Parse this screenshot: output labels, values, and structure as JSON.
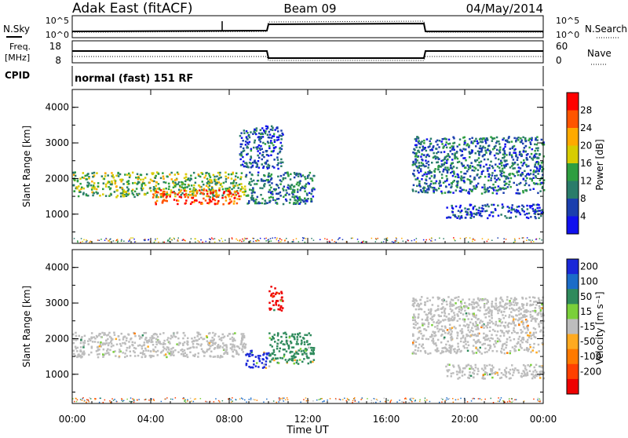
{
  "header": {
    "station": "Adak East (fitACF)",
    "beam": "Beam 09",
    "date": "04/May/2014"
  },
  "noise_panel": {
    "left_label": "N.Sky",
    "right_label": "N.Search",
    "left_ticks": [
      "10^5",
      "10^0"
    ],
    "right_ticks": [
      "10^5",
      "10^0"
    ]
  },
  "freq_panel": {
    "left_label_top": "Freq.",
    "left_label_unit": "[MHz]",
    "right_label": "Nave",
    "left_ticks": [
      "18",
      "8"
    ],
    "right_ticks": [
      "60",
      "0"
    ]
  },
  "cpid_panel": {
    "label": "CPID",
    "text": "normal (fast) 151 RF"
  },
  "power_colorbar": {
    "label": "Power [dB]",
    "ticks": [
      "28",
      "24",
      "20",
      "16",
      "12",
      "8",
      "4"
    ],
    "colors": [
      "#ff0000",
      "#ff5500",
      "#ffaa00",
      "#d8cc00",
      "#2e9e40",
      "#2a7c6a",
      "#1b3fae",
      "#1010ee"
    ]
  },
  "velocity_colorbar": {
    "label": "Velocity [m s⁻¹]",
    "ticks": [
      "200",
      "100",
      "50",
      "15",
      "-15",
      "-50",
      "-100",
      "-200"
    ],
    "colors": [
      "#1a28d8",
      "#1b6cc8",
      "#2f8a5c",
      "#7ad03a",
      "#bdbdbd",
      "#ffaa20",
      "#ff7a00",
      "#ff4000",
      "#ee0000"
    ]
  },
  "chart_data": [
    {
      "type": "heatmap",
      "title": "",
      "xlabel": "",
      "ylabel": "Slant Range [km]",
      "xlim_hours": [
        0,
        24
      ],
      "ylim_km": [
        180,
        4500
      ],
      "x_ticks": [
        "00:00",
        "04:00",
        "08:00",
        "12:00",
        "16:00",
        "20:00",
        "00:00"
      ],
      "y_ticks": [
        "4000",
        "3000",
        "2000",
        "1000"
      ],
      "variable": "Power [dB]",
      "clim": [
        0,
        30
      ],
      "echo_regions": [
        {
          "t_start": 0.0,
          "t_end": 8.8,
          "r_low": 1500,
          "r_high": 2200,
          "power": 14
        },
        {
          "t_start": 4.0,
          "t_end": 8.5,
          "r_low": 1300,
          "r_high": 1700,
          "power": 26
        },
        {
          "t_start": 8.8,
          "t_end": 12.3,
          "r_low": 1300,
          "r_high": 2200,
          "power": 9
        },
        {
          "t_start": 8.5,
          "t_end": 10.7,
          "r_low": 2300,
          "r_high": 3500,
          "power": 6
        },
        {
          "t_start": 17.3,
          "t_end": 24.0,
          "r_low": 1600,
          "r_high": 3200,
          "power": 8
        },
        {
          "t_start": 19.0,
          "t_end": 24.0,
          "r_low": 900,
          "r_high": 1300,
          "power": 5
        }
      ]
    },
    {
      "type": "heatmap",
      "title": "",
      "xlabel": "Time UT",
      "ylabel": "Slant Range [km]",
      "xlim_hours": [
        0,
        24
      ],
      "ylim_km": [
        180,
        4500
      ],
      "x_ticks": [
        "00:00",
        "04:00",
        "08:00",
        "12:00",
        "16:00",
        "20:00",
        "00:00"
      ],
      "y_ticks": [
        "4000",
        "3000",
        "2000",
        "1000"
      ],
      "variable": "Velocity [m s⁻¹]",
      "clim": [
        -250,
        250
      ],
      "echo_regions": [
        {
          "t_start": 0.0,
          "t_end": 8.8,
          "r_low": 1500,
          "r_high": 2200,
          "velocity": 0
        },
        {
          "t_start": 8.8,
          "t_end": 10.0,
          "r_low": 1200,
          "r_high": 1700,
          "velocity": 220
        },
        {
          "t_start": 10.0,
          "t_end": 12.3,
          "r_low": 1300,
          "r_high": 2200,
          "velocity": 80
        },
        {
          "t_start": 10.0,
          "t_end": 10.7,
          "r_low": 2800,
          "r_high": 3500,
          "velocity": -220
        },
        {
          "t_start": 17.3,
          "t_end": 24.0,
          "r_low": 1600,
          "r_high": 3200,
          "velocity": 0
        },
        {
          "t_start": 19.0,
          "t_end": 24.0,
          "r_low": 900,
          "r_high": 1300,
          "velocity": 0
        }
      ]
    }
  ]
}
